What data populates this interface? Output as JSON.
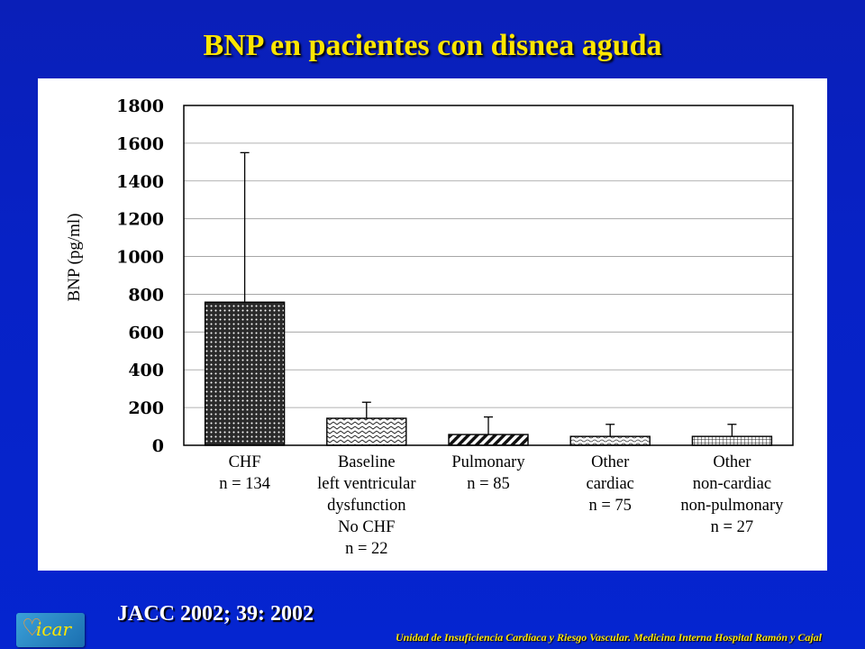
{
  "slide": {
    "title": "BNP en pacientes con disnea aguda",
    "citation": "JACC 2002; 39: 2002",
    "footer": "Unidad de Insuficiencia Cardíaca y Riesgo Vascular. Medicina Interna Hospital Ramón y Cajal",
    "logo_text": "icar"
  },
  "chart_data": {
    "type": "bar",
    "title": "",
    "ylabel": "BNP (pg/ml)",
    "xlabel": "",
    "ylim": [
      0,
      1800
    ],
    "yticks": [
      0,
      200,
      400,
      600,
      800,
      1000,
      1200,
      1400,
      1600,
      1800
    ],
    "grid": true,
    "error_bars": true,
    "categories": [
      [
        "CHF",
        "n = 134"
      ],
      [
        "Baseline",
        "left ventricular",
        "dysfunction",
        "No CHF",
        "n = 22"
      ],
      [
        "Pulmonary",
        "n = 85"
      ],
      [
        "Other",
        "cardiac",
        "n = 75"
      ],
      [
        "Other",
        "non-cardiac",
        "non-pulmonary",
        "n = 27"
      ]
    ],
    "values": [
      758,
      143,
      57,
      47,
      47
    ],
    "error_upper": [
      1550,
      228,
      150,
      111,
      111
    ],
    "patterns": [
      "dots-dense",
      "wave-lines",
      "diagonal-thick",
      "wavy",
      "grid"
    ]
  }
}
